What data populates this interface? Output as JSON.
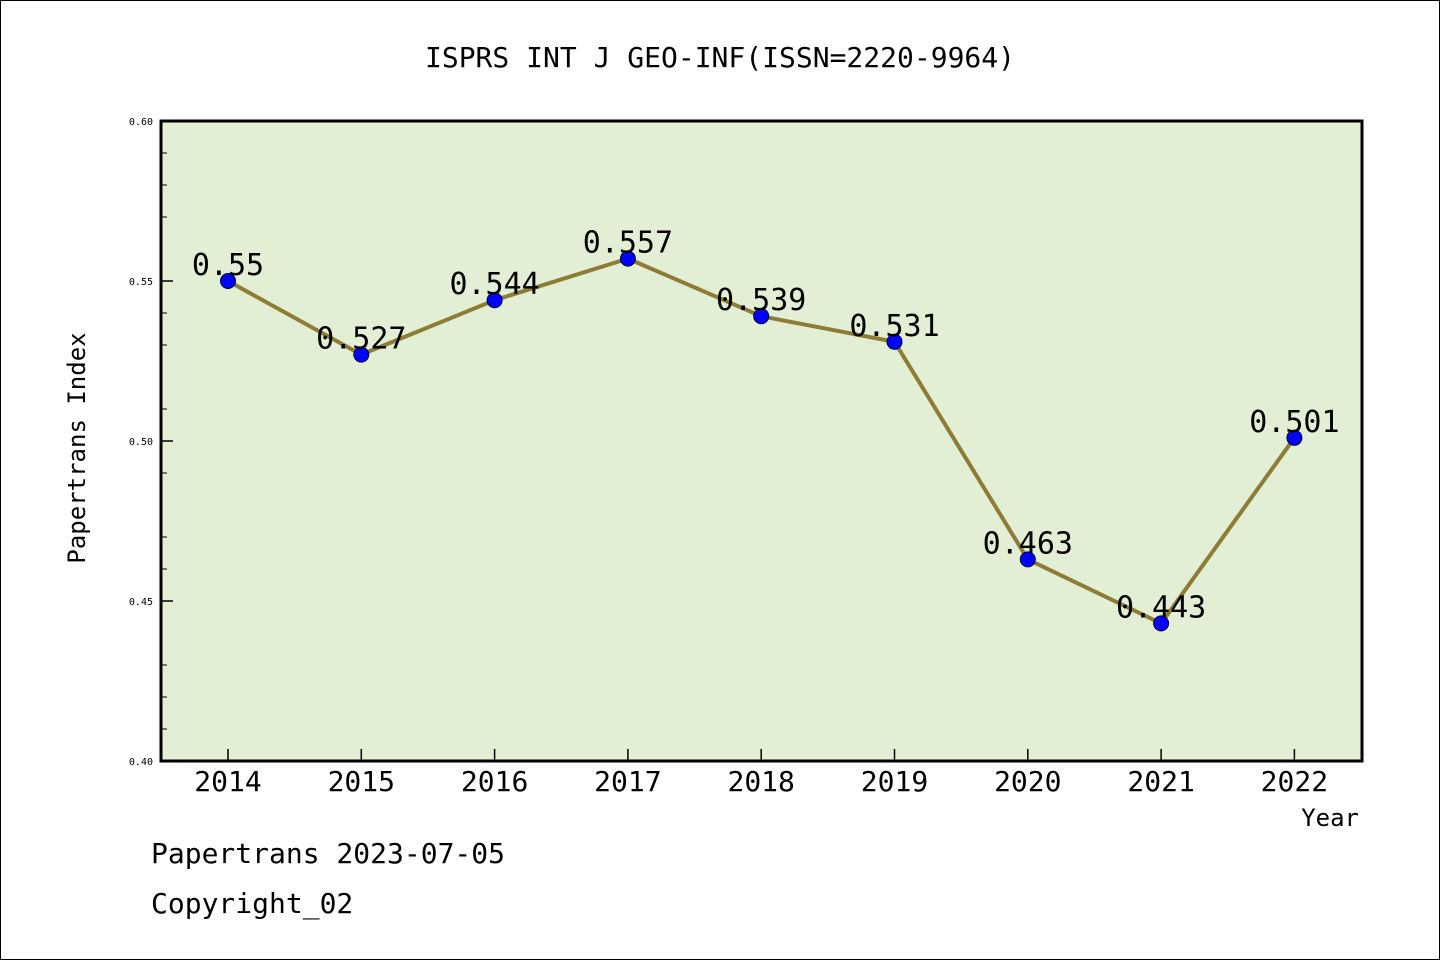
{
  "chart_data": {
    "type": "line",
    "title": "ISPRS INT J GEO-INF(ISSN=2220-9964)",
    "xlabel": "Year",
    "ylabel": "Papertrans Index",
    "categories": [
      "2014",
      "2015",
      "2016",
      "2017",
      "2018",
      "2019",
      "2020",
      "2021",
      "2022"
    ],
    "values": [
      0.55,
      0.527,
      0.544,
      0.557,
      0.539,
      0.531,
      0.463,
      0.443,
      0.501
    ],
    "data_labels": [
      "0.55",
      "0.527",
      "0.544",
      "0.557",
      "0.539",
      "0.531",
      "0.463",
      "0.443",
      "0.501"
    ],
    "ylim": [
      0.4,
      0.6
    ],
    "y_ticks": [
      "0.40",
      "0.45",
      "0.50",
      "0.55",
      "0.60"
    ],
    "grid": false,
    "colors": {
      "plot_background": "#e2efd4",
      "line": "#8c7c36",
      "marker": "#0000ff"
    }
  },
  "footer": {
    "line1": "Papertrans 2023-07-05",
    "line2": "Copyright_02"
  }
}
